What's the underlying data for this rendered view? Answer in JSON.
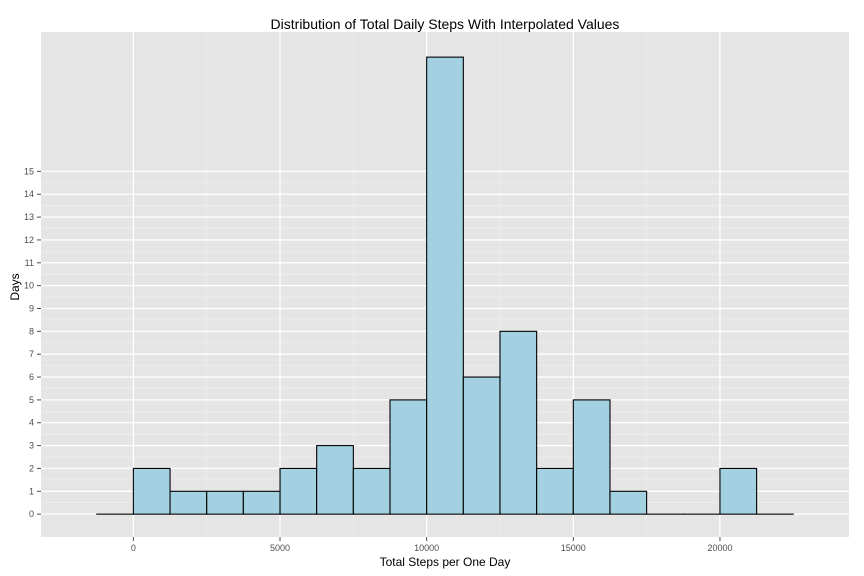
{
  "chart_data": {
    "type": "bar",
    "title": "Distribution of Total Daily Steps With Interpolated Values",
    "xlabel": "Total Steps per One Day",
    "ylabel": "Days",
    "bin_edges": [
      -1250,
      0,
      1250,
      2500,
      3750,
      5000,
      6250,
      7500,
      8750,
      10000,
      11250,
      12500,
      13750,
      15000,
      16250,
      17500,
      18750,
      20000,
      21250,
      22500
    ],
    "values": [
      0,
      2,
      1,
      1,
      1,
      2,
      3,
      2,
      5,
      20,
      6,
      8,
      2,
      5,
      1,
      0,
      0,
      2,
      0
    ],
    "xlim": [
      -3150,
      24400
    ],
    "ylim": [
      -1.0,
      21.1
    ],
    "x_ticks": [
      0,
      5000,
      10000,
      15000,
      20000
    ],
    "x_tick_labels": [
      "0",
      "5000",
      "10000",
      "15000",
      "20000"
    ],
    "y_ticks": [
      0,
      1,
      2,
      3,
      4,
      5,
      6,
      7,
      8,
      9,
      10,
      11,
      12,
      13,
      14,
      15
    ],
    "y_tick_labels": [
      "0",
      "1",
      "2",
      "3",
      "4",
      "5",
      "6",
      "7",
      "8",
      "9",
      "10",
      "11",
      "12",
      "13",
      "14",
      "15"
    ],
    "grid": true,
    "colors": {
      "panel": "#e5e5e5",
      "grid_major": "#ffffff",
      "grid_minor": "#f2f2f2",
      "bar_fill": "#a3d1e1",
      "bar_stroke": "#000000"
    }
  }
}
